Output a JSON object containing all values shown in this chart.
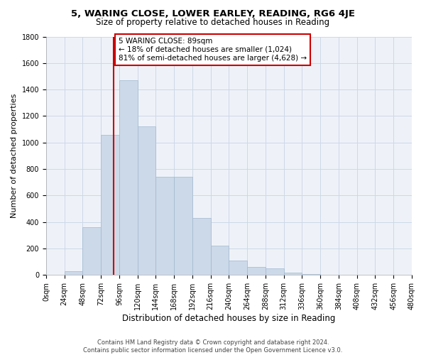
{
  "title": "5, WARING CLOSE, LOWER EARLEY, READING, RG6 4JE",
  "subtitle": "Size of property relative to detached houses in Reading",
  "xlabel": "Distribution of detached houses by size in Reading",
  "ylabel": "Number of detached properties",
  "bar_color": "#ccd9e8",
  "bar_edge_color": "#a0b8d0",
  "bar_values": [
    5,
    30,
    360,
    1060,
    1470,
    1120,
    740,
    740,
    430,
    220,
    110,
    60,
    50,
    20,
    10,
    5,
    3,
    2,
    1,
    1
  ],
  "bin_edges": [
    0,
    24,
    48,
    72,
    96,
    120,
    144,
    168,
    192,
    216,
    240,
    264,
    288,
    312,
    336,
    360,
    384,
    408,
    432,
    456,
    480
  ],
  "bin_labels": [
    "0sqm",
    "24sqm",
    "48sqm",
    "72sqm",
    "96sqm",
    "120sqm",
    "144sqm",
    "168sqm",
    "192sqm",
    "216sqm",
    "240sqm",
    "264sqm",
    "288sqm",
    "312sqm",
    "336sqm",
    "360sqm",
    "384sqm",
    "408sqm",
    "432sqm",
    "456sqm",
    "480sqm"
  ],
  "property_size": 89,
  "vline_x": 89,
  "vline_color": "#cc0000",
  "annotation_text": "5 WARING CLOSE: 89sqm\n← 18% of detached houses are smaller (1,024)\n81% of semi-detached houses are larger (4,628) →",
  "annotation_box_color": "#ffffff",
  "annotation_box_edge": "#cc0000",
  "ylim": [
    0,
    1800
  ],
  "yticks": [
    0,
    200,
    400,
    600,
    800,
    1000,
    1200,
    1400,
    1600,
    1800
  ],
  "footer_line1": "Contains HM Land Registry data © Crown copyright and database right 2024.",
  "footer_line2": "Contains public sector information licensed under the Open Government Licence v3.0.",
  "grid_color": "#ccd8e8",
  "background_color": "#eef2f8",
  "title_fontsize": 9.5,
  "subtitle_fontsize": 8.5,
  "xlabel_fontsize": 8.5,
  "ylabel_fontsize": 8,
  "tick_fontsize": 7,
  "annotation_fontsize": 7.5,
  "footer_fontsize": 6
}
